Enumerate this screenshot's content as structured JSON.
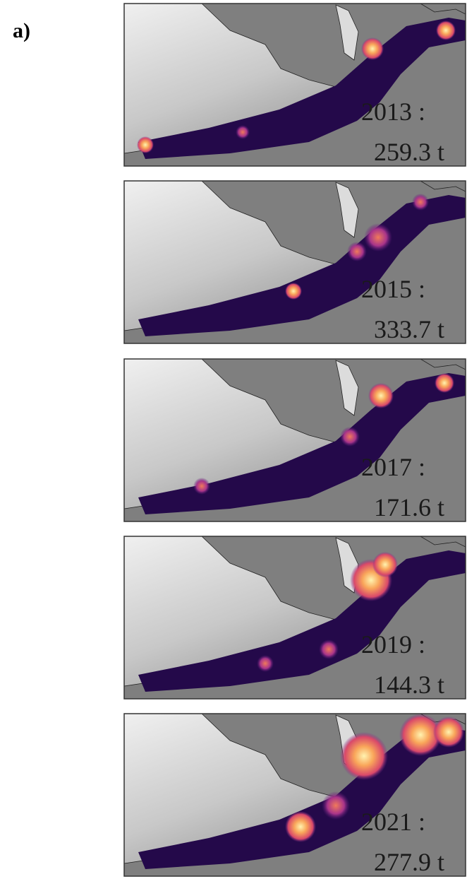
{
  "figure": {
    "label": "a)",
    "panels": [
      {
        "year": "2013 :",
        "total": "259.3 t"
      },
      {
        "year": "2015 :",
        "total": "333.7 t"
      },
      {
        "year": "2017 :",
        "total": "171.6 t"
      },
      {
        "year": "2019 :",
        "total": "144.3 t"
      },
      {
        "year": "2021 :",
        "total": "277.9 t"
      }
    ]
  }
}
